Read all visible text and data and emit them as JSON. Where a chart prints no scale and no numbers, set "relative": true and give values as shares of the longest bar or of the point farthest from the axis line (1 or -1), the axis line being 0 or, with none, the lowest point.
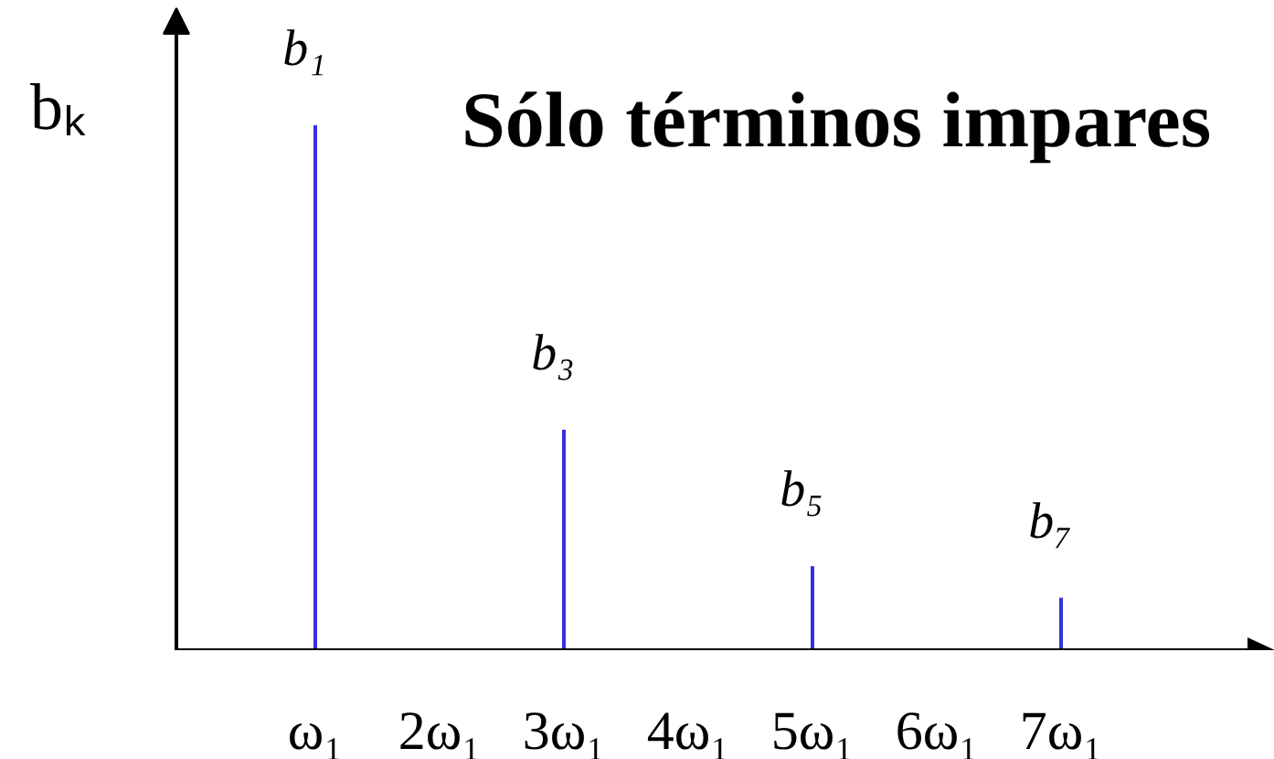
{
  "chart_data": {
    "type": "bar",
    "title": "Sólo términos impares",
    "ylabel": "bₖ",
    "categories": [
      "ω₁",
      "2ω₁",
      "3ω₁",
      "4ω₁",
      "5ω₁",
      "6ω₁",
      "7ω₁"
    ],
    "values": [
      1,
      null,
      0.42,
      null,
      0.16,
      null,
      0.1
    ],
    "color": "#3333dd",
    "relative": true,
    "annotations": [
      {
        "text": "b₁",
        "x": "ω₁",
        "y": 1
      },
      {
        "text": "b₃",
        "x": "3ω₁",
        "y": 0.42
      },
      {
        "text": "b₅",
        "x": "5ω₁",
        "y": 0.16
      },
      {
        "text": "b₇",
        "x": "7ω₁",
        "y": 0.1
      }
    ]
  }
}
